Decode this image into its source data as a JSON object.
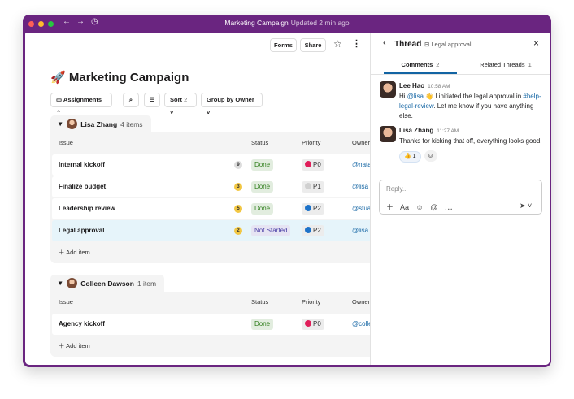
{
  "window": {
    "title": "Marketing Campaign",
    "updated": "Updated 2 min ago"
  },
  "header": {
    "forms": "Forms",
    "share": "Share"
  },
  "page": {
    "icon": "🚀",
    "title": "Marketing Campaign",
    "toolbar": {
      "assignments": "Assignments",
      "sort": "Sort",
      "sort_count": "2",
      "group": "Group by Owner"
    }
  },
  "groups": [
    {
      "owner": "Lisa Zhang",
      "count": "4 items",
      "columns": [
        "Issue",
        "Status",
        "Priority",
        "Owner"
      ],
      "rows": [
        {
          "issue": "Internal kickoff",
          "comments": "9",
          "comments_color": "#dddddd",
          "status": "Done",
          "status_color": "#2e7d1a",
          "priority": "P0",
          "priority_color": "#e01e5a",
          "owner": "@nata"
        },
        {
          "issue": "Finalize budget",
          "comments": "3",
          "comments_color": "#f2c744",
          "status": "Done",
          "status_color": "#2e7d1a",
          "priority": "P1",
          "priority_color": "#d0d0d0",
          "owner": "@lisa"
        },
        {
          "issue": "Leadership review",
          "comments": "5",
          "comments_color": "#f2c744",
          "status": "Done",
          "status_color": "#2e7d1a",
          "priority": "P2",
          "priority_color": "#1d72c9",
          "owner": "@stua"
        },
        {
          "issue": "Legal approval",
          "comments": "2",
          "comments_color": "#f2c744",
          "status": "Not Started",
          "status_color": "#4b3fa6",
          "priority": "P2",
          "priority_color": "#1d72c9",
          "owner": "@lisa",
          "selected": true
        }
      ],
      "add": "Add item"
    },
    {
      "owner": "Colleen Dawson",
      "count": "1 item",
      "columns": [
        "Issue",
        "Status",
        "Priority",
        "Owner"
      ],
      "rows": [
        {
          "issue": "Agency kickoff",
          "status": "Done",
          "status_color": "#2e7d1a",
          "priority": "P0",
          "priority_color": "#e01e5a",
          "owner": "@colle"
        }
      ],
      "add": "Add item"
    }
  ],
  "thread": {
    "title": "Thread",
    "item": "Legal approval",
    "tabs": [
      {
        "label": "Comments",
        "count": "2"
      },
      {
        "label": "Related Threads",
        "count": "1"
      }
    ],
    "messages": [
      {
        "author": "Lee Hao",
        "time": "10:58 AM",
        "body": [
          "Hi ",
          "@lisa",
          " 👋 I initiated the legal approval in ",
          "#help-legal-review",
          ". Let me know if you have anything else."
        ]
      },
      {
        "author": "Lisa Zhang",
        "time": "11:27 AM",
        "body": [
          "Thanks for kicking that off, everything looks good!"
        ],
        "reaction": {
          "emoji": "👍",
          "count": "1"
        }
      }
    ],
    "reply_placeholder": "Reply..."
  }
}
